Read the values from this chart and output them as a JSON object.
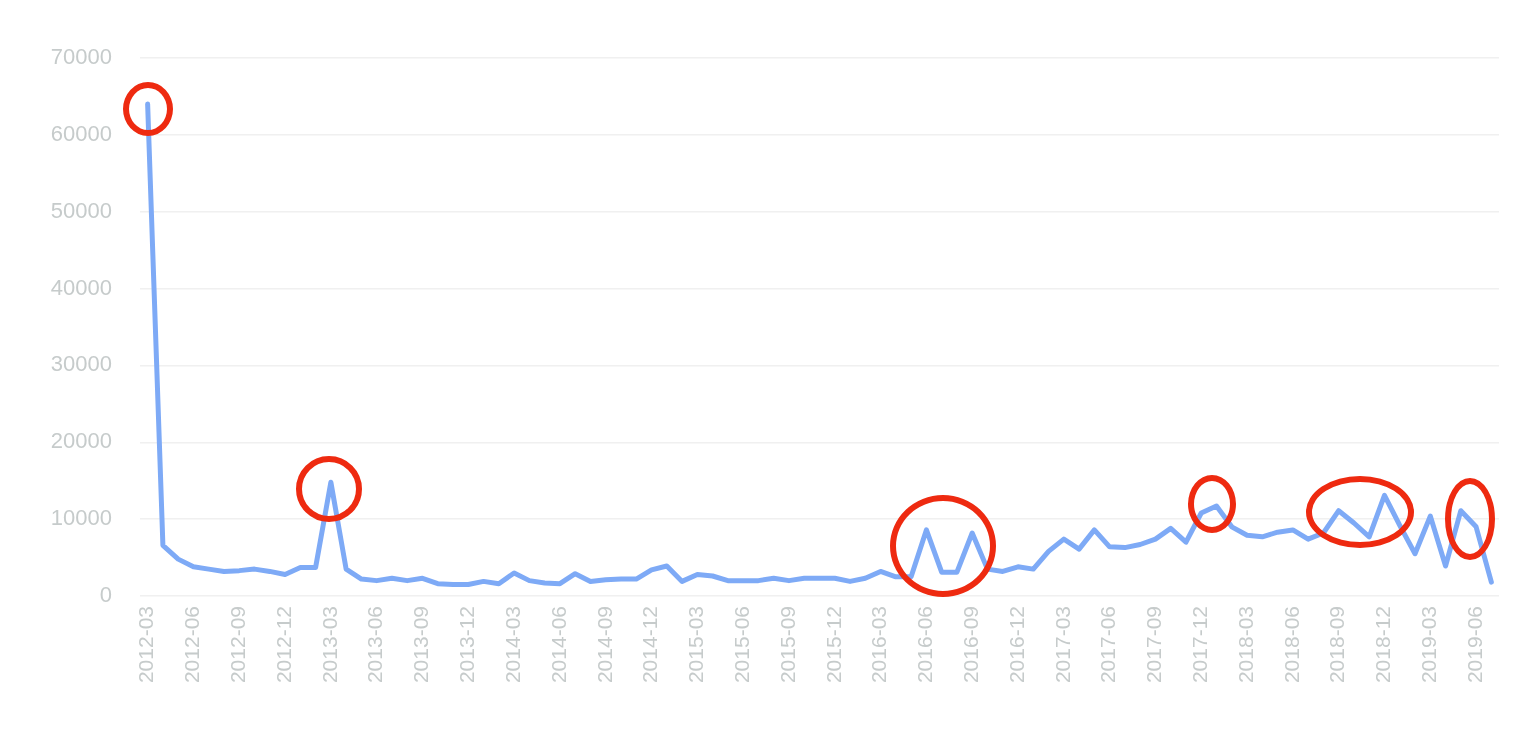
{
  "chart_data": {
    "type": "line",
    "categories": [
      "2012-03",
      null,
      null,
      "2012-06",
      null,
      null,
      "2012-09",
      null,
      null,
      "2012-12",
      null,
      null,
      "2013-03",
      null,
      null,
      "2013-06",
      null,
      null,
      "2013-09",
      null,
      null,
      "2013-12",
      null,
      null,
      "2014-03",
      null,
      null,
      "2014-06",
      null,
      null,
      "2014-09",
      null,
      null,
      "2014-12",
      null,
      null,
      "2015-03",
      null,
      null,
      "2015-06",
      null,
      null,
      "2015-09",
      null,
      null,
      "2015-12",
      null,
      null,
      "2016-03",
      null,
      null,
      "2016-06",
      null,
      null,
      "2016-09",
      null,
      null,
      "2016-12",
      null,
      null,
      "2017-03",
      null,
      null,
      "2017-06",
      null,
      null,
      "2017-09",
      null,
      null,
      "2017-12",
      null,
      null,
      "2018-03",
      null,
      null,
      "2018-06",
      null,
      null,
      "2018-09",
      null,
      null,
      "2018-12",
      null,
      null,
      "2019-03",
      null,
      null,
      "2019-06",
      null
    ],
    "series": [
      {
        "color": "#7eaaf6",
        "values": [
          64000,
          6600,
          4800,
          3800,
          3500,
          3200,
          3300,
          3500,
          3200,
          2800,
          3700,
          3700,
          14800,
          3500,
          2200,
          2000,
          2300,
          2000,
          2300,
          1600,
          1500,
          1500,
          1900,
          1600,
          3000,
          2000,
          1700,
          1600,
          2900,
          1900,
          2100,
          2200,
          2200,
          3400,
          3900,
          1900,
          2800,
          2600,
          2000,
          2000,
          2000,
          2300,
          2000,
          2300,
          2300,
          2300,
          1900,
          2300,
          3200,
          2500,
          2500,
          8600,
          3100,
          3100,
          8200,
          3500,
          3200,
          3800,
          3500,
          5800,
          7400,
          6100,
          8600,
          6400,
          6300,
          6700,
          7400,
          8800,
          7000,
          10800,
          11700,
          9000,
          7900,
          7700,
          8300,
          8600,
          7400,
          8200,
          11100,
          9500,
          7700,
          13100,
          9200,
          5500,
          10400,
          3900,
          11100,
          9000,
          1800
        ]
      }
    ],
    "ylim": [
      0,
      70000
    ],
    "yticks": [
      0,
      10000,
      20000,
      30000,
      40000,
      50000,
      60000,
      70000
    ],
    "grid": "y",
    "legend": false,
    "marker": "none",
    "line_style": "solid"
  }
}
